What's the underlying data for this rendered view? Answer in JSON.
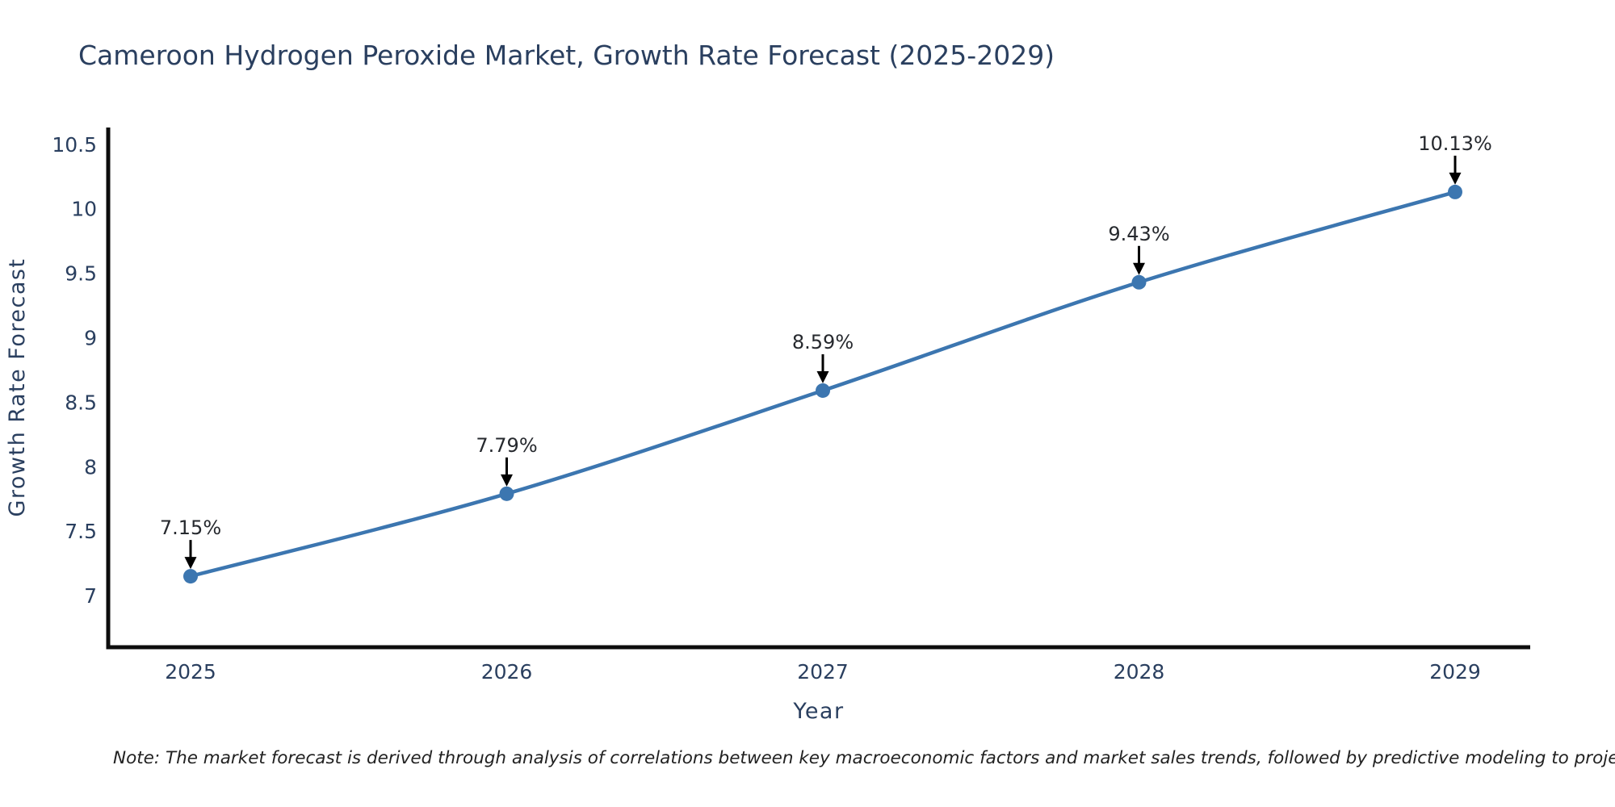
{
  "chart_data": {
    "type": "line",
    "title": "Cameroon Hydrogen Peroxide Market, Growth Rate Forecast (2025-2029)",
    "xlabel": "Year",
    "ylabel": "Growth Rate Forecast",
    "categories": [
      2025,
      2026,
      2027,
      2028,
      2029
    ],
    "x_tick_labels": [
      "2025",
      "2026",
      "2027",
      "2028",
      "2029"
    ],
    "series": [
      {
        "name": "Growth Rate Forecast",
        "values": [
          7.15,
          7.79,
          8.59,
          9.43,
          10.13
        ],
        "point_labels": [
          "7.15%",
          "7.79%",
          "8.59%",
          "9.43%",
          "10.13%"
        ]
      }
    ],
    "y_ticks": [
      7,
      7.5,
      8,
      8.5,
      9,
      9.5,
      10,
      10.5
    ],
    "y_tick_labels": [
      "7",
      "7.5",
      "8",
      "8.5",
      "9",
      "9.5",
      "10",
      "10.5"
    ],
    "ylim": [
      6.6,
      10.63
    ],
    "grid": false,
    "line_shape": "spline",
    "legend_position": "none",
    "annotation_arrows": true,
    "note": "Note: The market forecast is derived through analysis of correlations between key macroeconomic factors and market sales trends, followed by predictive modeling to project future sal",
    "colors": {
      "line": "#3c76b0",
      "marker": "#3c76b0",
      "title_text": "#2a3f5f",
      "tick_text": "#2a3f5f",
      "axis_title_text": "#2a3f5f",
      "axis_line": "#0d0d0d",
      "annotation_text": "#26292e",
      "arrow": "#000000",
      "note_text": "#222222",
      "background": "#ffffff"
    }
  }
}
